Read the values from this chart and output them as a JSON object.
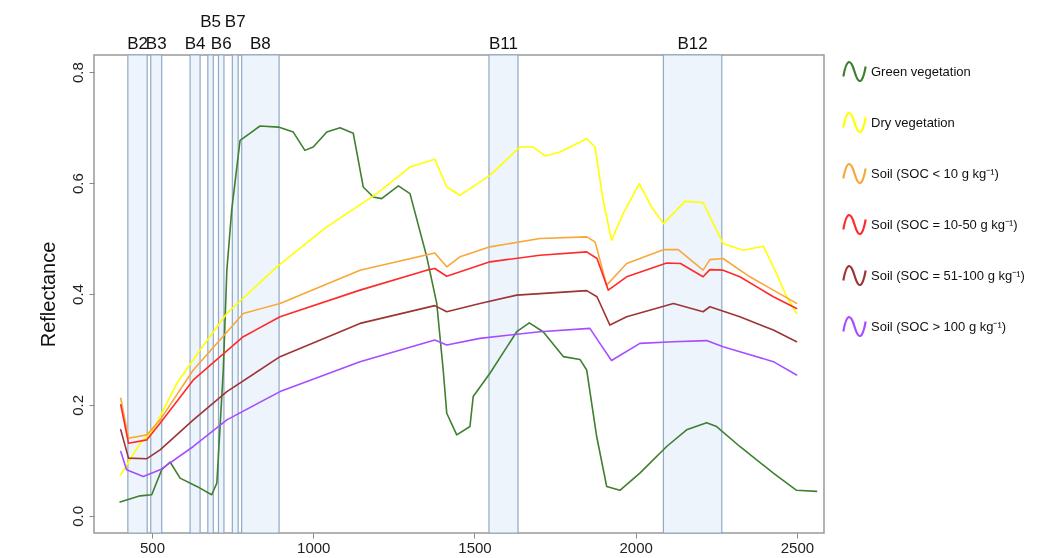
{
  "chart_data": {
    "type": "line",
    "ylabel": "Reflectance",
    "xlim": [
      320,
      2584
    ],
    "ylim": [
      -0.031,
      0.831
    ],
    "xticks": [
      500,
      1000,
      1500,
      2000,
      2500
    ],
    "yticks": [
      {
        "value": 0,
        "label": "0.0"
      },
      {
        "value": 0.2,
        "label": "0.2"
      },
      {
        "value": 0.4,
        "label": "0.4"
      },
      {
        "value": 0.6,
        "label": "0.6"
      },
      {
        "value": 0.8,
        "label": "0.8"
      }
    ],
    "legend": "right",
    "bands": [
      {
        "axis": "x",
        "from": 425,
        "to": 485,
        "label": "B2",
        "color": "#eef4fb"
      },
      {
        "axis": "x",
        "from": 496,
        "to": 530,
        "label": "B3",
        "color": "#eef4fb"
      },
      {
        "axis": "x",
        "from": 618,
        "to": 649,
        "label": "B4",
        "color": "#eef4fb"
      },
      {
        "axis": "x",
        "from": 673,
        "to": 690,
        "label": "B5",
        "color": "#eef4fb"
      },
      {
        "axis": "x",
        "from": 706,
        "to": 723,
        "label": "B6",
        "color": "#eef4fb"
      },
      {
        "axis": "x",
        "from": 749,
        "to": 767,
        "label": "B7",
        "color": "#eef4fb"
      },
      {
        "axis": "x",
        "from": 778,
        "to": 894,
        "label": "B8",
        "color": "#eef4fb"
      },
      {
        "axis": "x",
        "from": 1545,
        "to": 1635,
        "label": "B11",
        "color": "#eef4fb"
      },
      {
        "axis": "x",
        "from": 2086,
        "to": 2267,
        "label": "B12",
        "color": "#eef4fb"
      }
    ],
    "series": [
      {
        "name": "Green vegetation",
        "color": "#3f7f2f",
        "x": [
          401,
          463,
          499,
          530,
          556,
          587,
          639,
          685,
          701,
          721,
          732,
          747,
          773,
          835,
          892,
          938,
          974,
          1000,
          1042,
          1083,
          1124,
          1155,
          1186,
          1212,
          1264,
          1300,
          1352,
          1383,
          1403,
          1414,
          1445,
          1486,
          1496,
          1548,
          1631,
          1670,
          1713,
          1776,
          1827,
          1848,
          1879,
          1910,
          1951,
          2013,
          2096,
          2158,
          2220,
          2251,
          2323,
          2427,
          2499,
          2561
        ],
        "values": [
          0.025,
          0.036,
          0.038,
          0.083,
          0.097,
          0.068,
          0.053,
          0.038,
          0.059,
          0.263,
          0.443,
          0.551,
          0.677,
          0.703,
          0.701,
          0.692,
          0.659,
          0.665,
          0.692,
          0.7,
          0.69,
          0.593,
          0.575,
          0.572,
          0.595,
          0.581,
          0.467,
          0.383,
          0.263,
          0.185,
          0.146,
          0.161,
          0.215,
          0.257,
          0.332,
          0.348,
          0.332,
          0.287,
          0.282,
          0.263,
          0.143,
          0.053,
          0.046,
          0.077,
          0.125,
          0.155,
          0.168,
          0.161,
          0.125,
          0.077,
          0.046,
          0.044
        ]
      },
      {
        "name": "Dry vegetation",
        "color": "#ffff00",
        "x": [
          403,
          463,
          504,
          577,
          649,
          732,
          887,
          1042,
          1197,
          1300,
          1377,
          1414,
          1455,
          1548,
          1641,
          1682,
          1719,
          1765,
          1848,
          1874,
          1899,
          1925,
          1961,
          2011,
          2049,
          2086,
          2153,
          2209,
          2271,
          2333,
          2396,
          2437,
          2468,
          2499
        ],
        "values": [
          0.074,
          0.131,
          0.155,
          0.239,
          0.299,
          0.365,
          0.449,
          0.521,
          0.581,
          0.629,
          0.643,
          0.593,
          0.578,
          0.614,
          0.665,
          0.665,
          0.649,
          0.656,
          0.68,
          0.665,
          0.569,
          0.497,
          0.545,
          0.599,
          0.557,
          0.527,
          0.567,
          0.565,
          0.491,
          0.479,
          0.486,
          0.437,
          0.395,
          0.365
        ]
      },
      {
        "name": "Soil (SOC < 10 g kg⁻¹)",
        "color": "#f9a73a",
        "x": [
          403,
          427,
          484,
          525,
          628,
          783,
          897,
          1145,
          1377,
          1414,
          1455,
          1548,
          1703,
          1848,
          1874,
          1910,
          1972,
          2086,
          2132,
          2209,
          2230,
          2271,
          2354,
          2427,
          2499
        ],
        "values": [
          0.212,
          0.14,
          0.146,
          0.173,
          0.263,
          0.365,
          0.383,
          0.443,
          0.474,
          0.449,
          0.467,
          0.485,
          0.5,
          0.503,
          0.494,
          0.416,
          0.455,
          0.48,
          0.48,
          0.443,
          0.462,
          0.464,
          0.431,
          0.407,
          0.383
        ]
      },
      {
        "name": "Soil (SOC = 10-50 g kg⁻¹)",
        "color": "#ff2a2a",
        "x": [
          403,
          427,
          484,
          525,
          628,
          783,
          897,
          1145,
          1352,
          1377,
          1414,
          1548,
          1703,
          1848,
          1880,
          1915,
          1972,
          2096,
          2139,
          2209,
          2230,
          2271,
          2323,
          2427,
          2499
        ],
        "values": [
          0.2,
          0.131,
          0.137,
          0.167,
          0.245,
          0.323,
          0.359,
          0.407,
          0.443,
          0.446,
          0.432,
          0.458,
          0.47,
          0.476,
          0.464,
          0.407,
          0.431,
          0.456,
          0.455,
          0.431,
          0.444,
          0.443,
          0.431,
          0.395,
          0.374
        ]
      },
      {
        "name": "Soil (SOC = 51-100 g kg⁻¹)",
        "color": "#9e3434",
        "x": [
          403,
          427,
          484,
          525,
          628,
          732,
          897,
          1145,
          1377,
          1414,
          1517,
          1631,
          1848,
          1880,
          1920,
          1972,
          2117,
          2209,
          2230,
          2323,
          2427,
          2499
        ],
        "values": [
          0.155,
          0.104,
          0.103,
          0.119,
          0.173,
          0.224,
          0.287,
          0.347,
          0.379,
          0.368,
          0.383,
          0.398,
          0.406,
          0.395,
          0.344,
          0.359,
          0.383,
          0.368,
          0.377,
          0.359,
          0.335,
          0.314
        ]
      },
      {
        "name": "Soil (SOC > 100 g kg⁻¹)",
        "color": "#a64dff",
        "x": [
          403,
          421,
          473,
          525,
          628,
          732,
          897,
          1145,
          1377,
          1414,
          1517,
          1703,
          1858,
          1889,
          1925,
          2013,
          2117,
          2220,
          2271,
          2323,
          2427,
          2499
        ],
        "values": [
          0.116,
          0.083,
          0.071,
          0.083,
          0.125,
          0.173,
          0.224,
          0.278,
          0.317,
          0.308,
          0.32,
          0.332,
          0.338,
          0.311,
          0.28,
          0.311,
          0.314,
          0.316,
          0.305,
          0.296,
          0.278,
          0.254
        ]
      }
    ]
  }
}
